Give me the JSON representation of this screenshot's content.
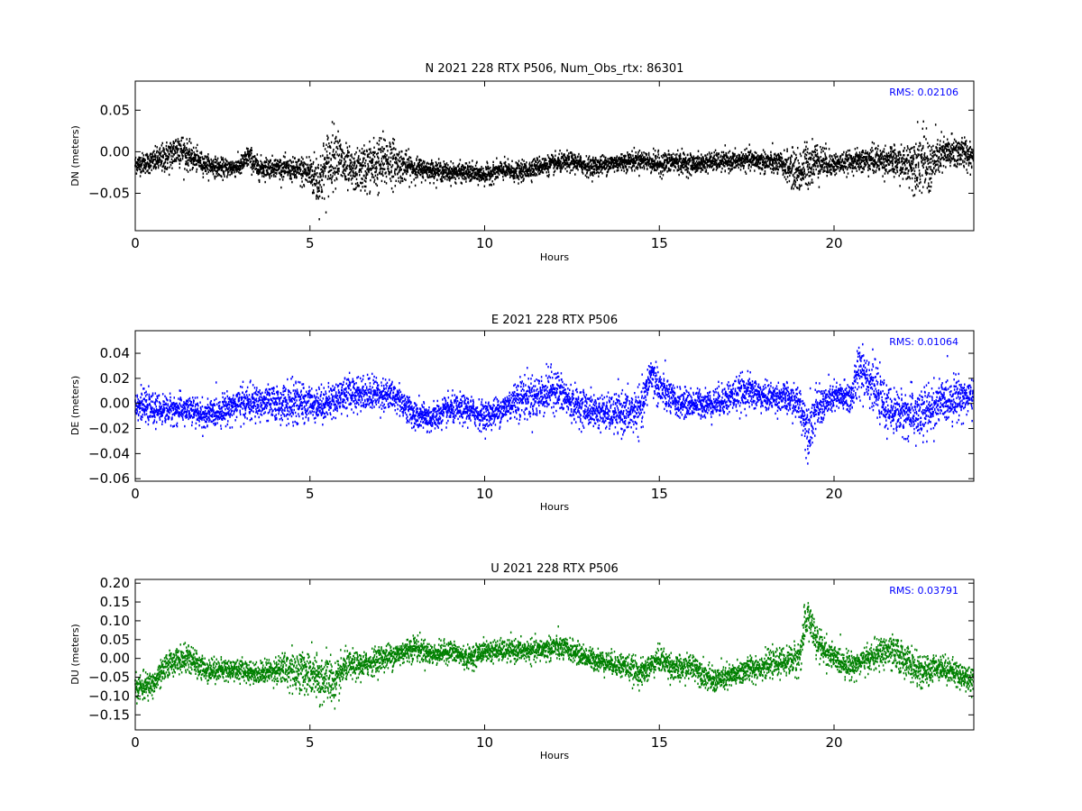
{
  "chart_data": [
    {
      "type": "scatter",
      "title": "N 2021 228 RTX  P506, Num_Obs_rtx: 86301",
      "xlabel": "Hours",
      "ylabel": "DN (meters)",
      "xlim": [
        0,
        24
      ],
      "ylim": [
        -0.095,
        0.085
      ],
      "xticks": [
        0,
        5,
        10,
        15,
        20
      ],
      "yticks": [
        0.05,
        0.0,
        -0.05
      ],
      "ytick_labels": [
        "0.05",
        "0.00",
        "−0.05"
      ],
      "grid": false,
      "legend": "none",
      "annotation": "RMS:  0.02106",
      "annotation_color": "#0000ff",
      "marker_color": "#000000",
      "series": [
        {
          "x": [
            0,
            0.5,
            1,
            1.25,
            1.5,
            2,
            2.5,
            3,
            3.25,
            3.5,
            4,
            4.5,
            5,
            5.25,
            5.5,
            5.75,
            6,
            6.25,
            6.5,
            7,
            7.25,
            7.5,
            8,
            8.5,
            9,
            9.5,
            10,
            10.5,
            11,
            11.5,
            12,
            12.5,
            13,
            13.5,
            14,
            14.5,
            15,
            15.5,
            16,
            16.5,
            17,
            17.5,
            18,
            18.5,
            19,
            19.25,
            19.5,
            20,
            20.5,
            21,
            21.5,
            22,
            22.5,
            22.75,
            23,
            23.5,
            24
          ],
          "center": [
            -0.015,
            -0.012,
            -0.005,
            0.005,
            -0.005,
            -0.015,
            -0.02,
            -0.018,
            -0.005,
            -0.02,
            -0.018,
            -0.022,
            -0.025,
            -0.035,
            -0.015,
            0.0,
            -0.02,
            -0.025,
            -0.02,
            -0.015,
            -0.01,
            -0.015,
            -0.02,
            -0.022,
            -0.025,
            -0.025,
            -0.028,
            -0.022,
            -0.025,
            -0.018,
            -0.015,
            -0.012,
            -0.018,
            -0.015,
            -0.012,
            -0.01,
            -0.015,
            -0.012,
            -0.015,
            -0.012,
            -0.012,
            -0.01,
            -0.012,
            -0.015,
            -0.025,
            -0.015,
            -0.01,
            -0.015,
            -0.012,
            -0.01,
            -0.01,
            -0.015,
            -0.01,
            -0.02,
            -0.005,
            0.0,
            -0.005
          ],
          "spread": [
            0.01,
            0.012,
            0.018,
            0.02,
            0.015,
            0.01,
            0.01,
            0.01,
            0.012,
            0.012,
            0.01,
            0.012,
            0.02,
            0.03,
            0.035,
            0.03,
            0.025,
            0.02,
            0.025,
            0.03,
            0.03,
            0.02,
            0.012,
            0.01,
            0.01,
            0.01,
            0.01,
            0.01,
            0.01,
            0.01,
            0.01,
            0.01,
            0.01,
            0.01,
            0.01,
            0.01,
            0.012,
            0.012,
            0.01,
            0.01,
            0.01,
            0.01,
            0.012,
            0.012,
            0.025,
            0.025,
            0.02,
            0.012,
            0.01,
            0.015,
            0.015,
            0.018,
            0.035,
            0.03,
            0.02,
            0.018,
            0.015
          ]
        }
      ]
    },
    {
      "type": "scatter",
      "title": "E 2021 228 RTX  P506",
      "xlabel": "Hours",
      "ylabel": "DE (meters)",
      "xlim": [
        0,
        24
      ],
      "ylim": [
        -0.062,
        0.058
      ],
      "xticks": [
        0,
        5,
        10,
        15,
        20
      ],
      "yticks": [
        0.04,
        0.02,
        0.0,
        -0.02,
        -0.04,
        -0.06
      ],
      "ytick_labels": [
        "0.04",
        "0.02",
        "0.00",
        "−0.02",
        "−0.04",
        "−0.06"
      ],
      "grid": false,
      "legend": "none",
      "annotation": "RMS:  0.01064",
      "annotation_color": "#0000ff",
      "marker_color": "#0000ff",
      "series": [
        {
          "x": [
            0,
            0.5,
            1,
            1.5,
            2,
            2.5,
            3,
            3.5,
            4,
            4.5,
            5,
            5.5,
            6,
            6.5,
            7,
            7.5,
            8,
            8.5,
            9,
            9.5,
            10,
            10.5,
            11,
            11.5,
            12,
            12.5,
            13,
            13.5,
            14,
            14.5,
            14.75,
            15,
            15.5,
            16,
            16.5,
            17,
            17.5,
            18,
            18.5,
            19,
            19.25,
            19.5,
            20,
            20.5,
            20.75,
            21,
            21.5,
            22,
            22.5,
            23,
            23.5,
            24
          ],
          "center": [
            0.0,
            -0.005,
            -0.005,
            -0.005,
            -0.01,
            -0.005,
            0.0,
            0.0,
            0.0,
            0.0,
            0.0,
            0.0,
            0.008,
            0.008,
            0.008,
            0.005,
            -0.01,
            -0.012,
            -0.005,
            -0.005,
            -0.01,
            -0.005,
            0.005,
            0.005,
            0.012,
            0.0,
            -0.005,
            -0.008,
            -0.008,
            -0.005,
            0.025,
            0.012,
            0.0,
            0.0,
            0.0,
            0.005,
            0.01,
            0.005,
            0.005,
            0.0,
            -0.02,
            -0.005,
            0.005,
            0.005,
            0.03,
            0.02,
            -0.005,
            -0.008,
            -0.01,
            0.0,
            0.005,
            0.005
          ],
          "spread": [
            0.01,
            0.01,
            0.01,
            0.01,
            0.01,
            0.01,
            0.012,
            0.012,
            0.012,
            0.015,
            0.012,
            0.012,
            0.012,
            0.012,
            0.012,
            0.01,
            0.01,
            0.01,
            0.01,
            0.01,
            0.01,
            0.01,
            0.015,
            0.015,
            0.015,
            0.012,
            0.012,
            0.012,
            0.015,
            0.015,
            0.012,
            0.015,
            0.01,
            0.01,
            0.01,
            0.012,
            0.012,
            0.01,
            0.01,
            0.012,
            0.02,
            0.015,
            0.01,
            0.012,
            0.02,
            0.018,
            0.015,
            0.015,
            0.02,
            0.015,
            0.015,
            0.012
          ]
        }
      ]
    },
    {
      "type": "scatter",
      "title": "U 2021 228 RTX  P506",
      "xlabel": "Hours",
      "ylabel": "DU (meters)",
      "xlim": [
        0,
        24
      ],
      "ylim": [
        -0.19,
        0.21
      ],
      "xticks": [
        0,
        5,
        10,
        15,
        20
      ],
      "yticks": [
        0.2,
        0.15,
        0.1,
        0.05,
        0.0,
        -0.05,
        -0.1,
        -0.15
      ],
      "ytick_labels": [
        "0.20",
        "0.15",
        "0.10",
        "0.05",
        "0.00",
        "−0.05",
        "−0.10",
        "−0.15"
      ],
      "grid": false,
      "legend": "none",
      "annotation": "RMS:  0.03791",
      "annotation_color": "#0000ff",
      "marker_color": "#008000",
      "series": [
        {
          "x": [
            0,
            0.5,
            1,
            1.5,
            2,
            2.5,
            3,
            3.5,
            4,
            4.5,
            5,
            5.25,
            5.5,
            5.75,
            6,
            6.5,
            7,
            7.5,
            8,
            8.5,
            9,
            9.5,
            10,
            10.5,
            11,
            11.5,
            12,
            12.5,
            13,
            13.5,
            14,
            14.5,
            15,
            15.5,
            16,
            16.5,
            17,
            17.5,
            18,
            18.5,
            19,
            19.25,
            19.5,
            20,
            20.5,
            21,
            21.5,
            22,
            22.5,
            23,
            23.5,
            24
          ],
          "center": [
            -0.08,
            -0.07,
            -0.01,
            0.0,
            -0.03,
            -0.03,
            -0.03,
            -0.04,
            -0.03,
            -0.03,
            -0.04,
            -0.06,
            -0.05,
            -0.07,
            -0.02,
            -0.02,
            0.0,
            0.01,
            0.03,
            0.01,
            0.02,
            0.0,
            0.02,
            0.02,
            0.02,
            0.02,
            0.03,
            0.02,
            0.0,
            -0.01,
            -0.02,
            -0.04,
            0.0,
            -0.03,
            -0.02,
            -0.06,
            -0.05,
            -0.03,
            -0.02,
            -0.01,
            0.0,
            0.12,
            0.04,
            0.0,
            -0.02,
            0.0,
            0.02,
            0.0,
            -0.04,
            -0.02,
            -0.04,
            -0.06
          ],
          "spread": [
            0.03,
            0.03,
            0.03,
            0.03,
            0.03,
            0.025,
            0.025,
            0.025,
            0.03,
            0.05,
            0.05,
            0.06,
            0.06,
            0.05,
            0.035,
            0.03,
            0.03,
            0.03,
            0.03,
            0.025,
            0.025,
            0.025,
            0.025,
            0.025,
            0.025,
            0.025,
            0.03,
            0.025,
            0.025,
            0.025,
            0.03,
            0.03,
            0.03,
            0.03,
            0.03,
            0.03,
            0.03,
            0.03,
            0.03,
            0.03,
            0.04,
            0.05,
            0.04,
            0.03,
            0.03,
            0.03,
            0.04,
            0.04,
            0.035,
            0.03,
            0.03,
            0.03
          ]
        }
      ]
    }
  ]
}
